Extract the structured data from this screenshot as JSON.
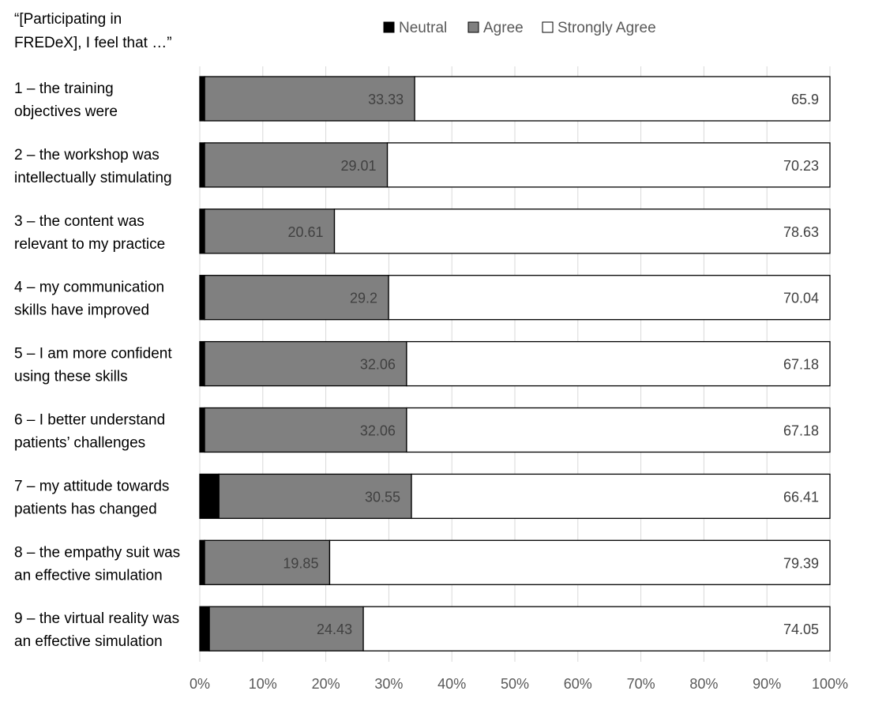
{
  "chart_data": {
    "type": "bar",
    "orientation": "horizontal",
    "stacked": "percent",
    "header": [
      "“[Participating in",
      "FREDeX], I feel that …”"
    ],
    "categories": [
      [
        "1 – the training",
        "objectives were"
      ],
      [
        "2 – the workshop was",
        "intellectually stimulating"
      ],
      [
        "3 – the content was",
        "relevant to my practice"
      ],
      [
        "4 – my communication",
        "skills have improved"
      ],
      [
        "5 – I am more confident",
        "using these skills"
      ],
      [
        "6 – I better understand",
        "patients’ challenges"
      ],
      [
        "7 – my attitude towards",
        "patients has changed"
      ],
      [
        "8 – the empathy suit was",
        "an effective simulation"
      ],
      [
        "9 – the virtual reality was",
        "an effective simulation"
      ]
    ],
    "series": [
      {
        "name": "Neutral",
        "color": "#000000",
        "values": [
          0.77,
          0.76,
          0.76,
          0.76,
          0.76,
          0.76,
          3.04,
          0.76,
          1.52
        ],
        "labels": []
      },
      {
        "name": "Agree",
        "color": "#808080",
        "values": [
          33.33,
          29.01,
          20.61,
          29.2,
          32.06,
          32.06,
          30.55,
          19.85,
          24.43
        ],
        "labels": [
          "33.33",
          "29.01",
          "20.61",
          "29.2",
          "32.06",
          "32.06",
          "30.55",
          "19.85",
          "24.43"
        ]
      },
      {
        "name": "Strongly Agree",
        "color": "#ffffff",
        "values": [
          65.9,
          70.23,
          78.63,
          70.04,
          67.18,
          67.18,
          66.41,
          79.39,
          74.05
        ],
        "labels": [
          "65.9",
          "70.23",
          "78.63",
          "70.04",
          "67.18",
          "67.18",
          "66.41",
          "79.39",
          "74.05"
        ]
      }
    ],
    "xlim": [
      0,
      100
    ],
    "xticks": [
      "0%",
      "10%",
      "20%",
      "30%",
      "40%",
      "50%",
      "60%",
      "70%",
      "80%",
      "90%",
      "100%"
    ],
    "grid": "vertical",
    "legend": "top"
  }
}
